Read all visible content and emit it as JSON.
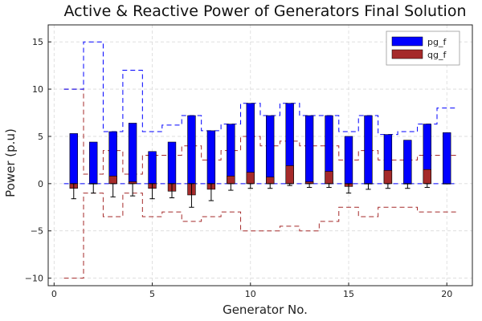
{
  "chart_data": {
    "type": "bar",
    "title": "Active & Reactive Power of Generators Final Solution",
    "xlabel": "Generator No.",
    "ylabel": "Power (p.u)",
    "xlim": [
      -0.3,
      21.3
    ],
    "ylim": [
      -10.8,
      16.8
    ],
    "xticks": [
      0,
      5,
      10,
      15,
      20
    ],
    "yticks": [
      -10,
      -5,
      0,
      5,
      10,
      15
    ],
    "x_tick_labels": [
      "0",
      "5",
      "10",
      "15",
      "20"
    ],
    "y_tick_labels": [
      "−10",
      "−5",
      "0",
      "5",
      "10",
      "15"
    ],
    "grid": true,
    "legend_position": "top-right",
    "generators": [
      1,
      2,
      3,
      4,
      5,
      6,
      7,
      8,
      9,
      10,
      11,
      12,
      13,
      14,
      15,
      16,
      17,
      18,
      19,
      20
    ],
    "series": [
      {
        "name": "pg_f",
        "color": "#0000ff",
        "values": [
          5.3,
          4.4,
          5.5,
          6.4,
          3.4,
          4.4,
          7.2,
          5.6,
          6.3,
          8.5,
          7.2,
          8.5,
          7.2,
          7.2,
          5.0,
          7.2,
          5.2,
          4.6,
          6.3,
          5.4
        ],
        "max": [
          10.0,
          15.0,
          5.5,
          12.0,
          5.5,
          6.2,
          7.2,
          5.6,
          6.3,
          8.5,
          7.2,
          8.5,
          7.2,
          7.2,
          5.5,
          7.2,
          5.2,
          5.5,
          6.3,
          8.0
        ]
      },
      {
        "name": "qg_f",
        "color": "#a52a2a",
        "values": [
          -0.5,
          0.0,
          0.8,
          0.2,
          -0.5,
          -0.8,
          -1.2,
          -0.6,
          0.8,
          1.2,
          0.7,
          1.9,
          0.2,
          1.3,
          -0.3,
          0.0,
          1.4,
          0.0,
          1.5,
          0.0
        ],
        "min": [
          -10.0,
          -1.0,
          -3.5,
          -1.0,
          -3.5,
          -3.0,
          -4.0,
          -3.5,
          -3.0,
          -5.0,
          -5.0,
          -4.5,
          -5.0,
          -4.0,
          -2.5,
          -3.5,
          -2.5,
          -2.5,
          -3.0,
          -3.0
        ],
        "max": [
          10.0,
          1.0,
          3.5,
          1.0,
          3.0,
          3.0,
          4.0,
          2.5,
          3.5,
          5.0,
          4.0,
          4.5,
          4.0,
          4.0,
          2.5,
          3.5,
          2.5,
          2.5,
          3.0,
          3.0
        ]
      }
    ],
    "error_bars": {
      "low": [
        -1.6,
        -1.0,
        -1.4,
        -1.3,
        -1.6,
        -1.5,
        -2.5,
        -1.8,
        -0.7,
        -0.5,
        -0.5,
        -0.2,
        -0.4,
        -0.4,
        -1.0,
        -0.6,
        -0.5,
        -0.5,
        -0.4,
        0.0
      ],
      "high": [
        0.0,
        0.0,
        0.0,
        0.0,
        0.0,
        0.0,
        0.0,
        0.0,
        0.0,
        0.0,
        0.0,
        0.0,
        0.0,
        0.0,
        0.0,
        0.0,
        0.0,
        0.0,
        0.0,
        0.0
      ]
    }
  }
}
